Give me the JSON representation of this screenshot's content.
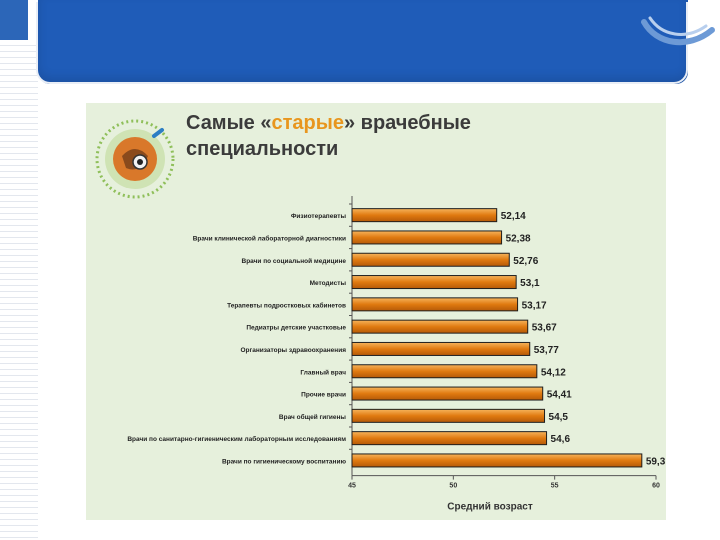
{
  "theme": {
    "banner_color": "#1f5cb8",
    "slide_bg": "#e6f0dc",
    "bar_color": "#e07a10",
    "title_accent_color": "#e8961e"
  },
  "logo": {
    "icon": "medical-emblem-icon"
  },
  "title": {
    "part1": "Самые «",
    "accent": "старые",
    "part2": "» врачебные",
    "line2": "специальности"
  },
  "chart_data": {
    "type": "bar",
    "orientation": "horizontal",
    "categories": [
      "Физиотерапевты",
      "Врачи клинической лабораторной диагностики",
      "Врачи по социальной медицине",
      "Методисты",
      "Терапевты подростковых кабинетов",
      "Педиатры детские участковые",
      "Организаторы здравоохранения",
      "Главный врач",
      "Прочие врачи",
      "Врач общей гигиены",
      "Врачи по санитарно-гигиеническим лабораторным исследованиям",
      "Врачи по гигиеническому воспитанию"
    ],
    "values": [
      52.14,
      52.38,
      52.76,
      53.1,
      53.17,
      53.67,
      53.77,
      54.12,
      54.41,
      54.5,
      54.6,
      59.3
    ],
    "value_labels": [
      "52,14",
      "52,38",
      "52,76",
      "53,1",
      "53,17",
      "53,67",
      "53,77",
      "54,12",
      "54,41",
      "54,5",
      "54,6",
      "59,3"
    ],
    "xlim": [
      45,
      60
    ],
    "xticks": [
      "45",
      "50",
      "55",
      "60"
    ],
    "xlabel": "Средний возраст",
    "grid": false,
    "legend": "none"
  }
}
